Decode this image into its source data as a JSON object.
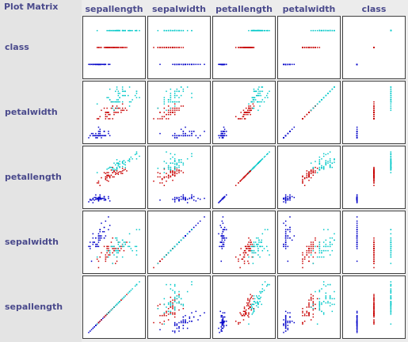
{
  "title": "Plot Matrix",
  "attributes": [
    "sepallength",
    "sepalwidth",
    "petallength",
    "petalwidth",
    "class"
  ],
  "lims": [
    [
      4.3,
      7.9
    ],
    [
      2.0,
      4.4
    ],
    [
      1.0,
      6.9
    ],
    [
      0.1,
      2.5
    ],
    [
      -0.5,
      2.5
    ]
  ],
  "colors": [
    "#0000c8",
    "#c80000",
    "#00c8c8"
  ],
  "instances": [
    [
      5.1,
      3.5,
      1.4,
      0.2,
      0
    ],
    [
      4.9,
      3.0,
      1.4,
      0.2,
      0
    ],
    [
      4.7,
      3.2,
      1.3,
      0.2,
      0
    ],
    [
      4.6,
      3.1,
      1.5,
      0.2,
      0
    ],
    [
      5.0,
      3.6,
      1.4,
      0.2,
      0
    ],
    [
      5.4,
      3.9,
      1.7,
      0.4,
      0
    ],
    [
      4.6,
      3.4,
      1.4,
      0.3,
      0
    ],
    [
      5.0,
      3.4,
      1.5,
      0.2,
      0
    ],
    [
      4.4,
      2.9,
      1.4,
      0.2,
      0
    ],
    [
      4.9,
      3.1,
      1.5,
      0.1,
      0
    ],
    [
      5.4,
      3.7,
      1.5,
      0.2,
      0
    ],
    [
      4.8,
      3.4,
      1.6,
      0.2,
      0
    ],
    [
      4.8,
      3.0,
      1.4,
      0.1,
      0
    ],
    [
      4.3,
      3.0,
      1.1,
      0.1,
      0
    ],
    [
      5.8,
      4.0,
      1.2,
      0.2,
      0
    ],
    [
      5.7,
      4.4,
      1.5,
      0.4,
      0
    ],
    [
      5.4,
      3.9,
      1.3,
      0.4,
      0
    ],
    [
      5.1,
      3.5,
      1.4,
      0.3,
      0
    ],
    [
      5.7,
      3.8,
      1.7,
      0.3,
      0
    ],
    [
      5.1,
      3.8,
      1.5,
      0.3,
      0
    ],
    [
      5.4,
      3.4,
      1.7,
      0.2,
      0
    ],
    [
      5.1,
      3.7,
      1.5,
      0.4,
      0
    ],
    [
      4.6,
      3.6,
      1.0,
      0.2,
      0
    ],
    [
      5.1,
      3.3,
      1.7,
      0.5,
      0
    ],
    [
      4.8,
      3.4,
      1.9,
      0.2,
      0
    ],
    [
      5.0,
      3.0,
      1.6,
      0.2,
      0
    ],
    [
      5.0,
      3.4,
      1.6,
      0.4,
      0
    ],
    [
      5.2,
      3.5,
      1.5,
      0.2,
      0
    ],
    [
      5.2,
      3.4,
      1.4,
      0.2,
      0
    ],
    [
      4.7,
      3.2,
      1.6,
      0.2,
      0
    ],
    [
      4.8,
      3.1,
      1.6,
      0.2,
      0
    ],
    [
      5.4,
      3.4,
      1.5,
      0.4,
      0
    ],
    [
      5.2,
      4.1,
      1.5,
      0.1,
      0
    ],
    [
      5.5,
      4.2,
      1.4,
      0.2,
      0
    ],
    [
      4.9,
      3.1,
      1.5,
      0.1,
      0
    ],
    [
      5.0,
      3.2,
      1.2,
      0.2,
      0
    ],
    [
      5.5,
      3.5,
      1.3,
      0.2,
      0
    ],
    [
      4.9,
      3.1,
      1.5,
      0.1,
      0
    ],
    [
      4.4,
      3.0,
      1.3,
      0.2,
      0
    ],
    [
      5.1,
      3.4,
      1.5,
      0.2,
      0
    ],
    [
      5.0,
      3.5,
      1.3,
      0.3,
      0
    ],
    [
      4.5,
      2.3,
      1.3,
      0.3,
      0
    ],
    [
      4.4,
      3.2,
      1.3,
      0.2,
      0
    ],
    [
      5.0,
      3.5,
      1.6,
      0.6,
      0
    ],
    [
      5.1,
      3.8,
      1.9,
      0.4,
      0
    ],
    [
      4.8,
      3.0,
      1.4,
      0.3,
      0
    ],
    [
      5.1,
      3.8,
      1.6,
      0.2,
      0
    ],
    [
      4.6,
      3.2,
      1.4,
      0.2,
      0
    ],
    [
      5.3,
      3.7,
      1.5,
      0.2,
      0
    ],
    [
      5.0,
      3.3,
      1.4,
      0.2,
      0
    ],
    [
      7.0,
      3.2,
      4.7,
      1.4,
      1
    ],
    [
      6.4,
      3.2,
      4.5,
      1.5,
      1
    ],
    [
      6.9,
      3.1,
      4.9,
      1.5,
      1
    ],
    [
      5.5,
      2.3,
      4.0,
      1.3,
      1
    ],
    [
      6.5,
      2.8,
      4.6,
      1.5,
      1
    ],
    [
      5.7,
      2.8,
      4.5,
      1.3,
      1
    ],
    [
      6.3,
      3.3,
      4.7,
      1.6,
      1
    ],
    [
      4.9,
      2.4,
      3.3,
      1.0,
      1
    ],
    [
      6.6,
      2.9,
      4.6,
      1.3,
      1
    ],
    [
      5.2,
      2.7,
      3.9,
      1.4,
      1
    ],
    [
      5.0,
      2.0,
      3.5,
      1.0,
      1
    ],
    [
      5.9,
      3.0,
      4.2,
      1.5,
      1
    ],
    [
      6.0,
      2.2,
      4.0,
      1.0,
      1
    ],
    [
      6.1,
      2.9,
      4.7,
      1.4,
      1
    ],
    [
      5.6,
      2.9,
      3.6,
      1.3,
      1
    ],
    [
      6.7,
      3.1,
      4.4,
      1.4,
      1
    ],
    [
      5.6,
      3.0,
      4.5,
      1.5,
      1
    ],
    [
      5.8,
      2.7,
      4.1,
      1.0,
      1
    ],
    [
      6.2,
      2.2,
      4.5,
      1.5,
      1
    ],
    [
      5.6,
      2.5,
      3.9,
      1.1,
      1
    ],
    [
      5.9,
      3.2,
      4.8,
      1.8,
      1
    ],
    [
      6.1,
      2.8,
      4.0,
      1.3,
      1
    ],
    [
      6.3,
      2.5,
      4.9,
      1.5,
      1
    ],
    [
      6.1,
      2.8,
      4.7,
      1.2,
      1
    ],
    [
      6.4,
      2.9,
      4.3,
      1.3,
      1
    ],
    [
      6.6,
      3.0,
      4.4,
      1.4,
      1
    ],
    [
      6.8,
      2.8,
      4.8,
      1.4,
      1
    ],
    [
      6.7,
      3.0,
      5.0,
      1.7,
      1
    ],
    [
      6.0,
      2.9,
      4.5,
      1.5,
      1
    ],
    [
      5.7,
      2.6,
      3.5,
      1.0,
      1
    ],
    [
      5.5,
      2.4,
      3.8,
      1.1,
      1
    ],
    [
      5.5,
      2.4,
      3.7,
      1.0,
      1
    ],
    [
      5.8,
      2.7,
      3.9,
      1.2,
      1
    ],
    [
      6.0,
      2.7,
      5.1,
      1.6,
      1
    ],
    [
      5.4,
      3.0,
      4.5,
      1.5,
      1
    ],
    [
      6.0,
      3.4,
      4.5,
      1.6,
      1
    ],
    [
      6.7,
      3.1,
      4.7,
      1.5,
      1
    ],
    [
      6.3,
      2.3,
      4.4,
      1.3,
      1
    ],
    [
      5.6,
      3.0,
      4.1,
      1.3,
      1
    ],
    [
      5.5,
      2.5,
      4.0,
      1.3,
      1
    ],
    [
      5.5,
      2.6,
      4.4,
      1.2,
      1
    ],
    [
      6.1,
      3.0,
      4.6,
      1.4,
      1
    ],
    [
      5.8,
      2.6,
      4.0,
      1.2,
      1
    ],
    [
      5.0,
      2.3,
      3.3,
      1.0,
      1
    ],
    [
      5.6,
      2.7,
      4.2,
      1.3,
      1
    ],
    [
      5.7,
      3.0,
      4.2,
      1.2,
      1
    ],
    [
      5.7,
      2.9,
      4.2,
      1.3,
      1
    ],
    [
      6.2,
      2.9,
      4.3,
      1.3,
      1
    ],
    [
      5.1,
      2.5,
      3.0,
      1.1,
      1
    ],
    [
      5.7,
      2.8,
      4.1,
      1.3,
      1
    ],
    [
      6.3,
      3.3,
      6.0,
      2.5,
      2
    ],
    [
      5.8,
      2.7,
      5.1,
      1.9,
      2
    ],
    [
      7.1,
      3.0,
      5.9,
      2.1,
      2
    ],
    [
      6.3,
      2.9,
      5.6,
      1.8,
      2
    ],
    [
      6.5,
      3.0,
      5.8,
      2.2,
      2
    ],
    [
      7.6,
      3.0,
      6.6,
      2.1,
      2
    ],
    [
      4.9,
      2.5,
      4.5,
      1.7,
      2
    ],
    [
      7.3,
      2.9,
      6.3,
      1.8,
      2
    ],
    [
      6.7,
      2.5,
      5.8,
      1.8,
      2
    ],
    [
      7.2,
      3.6,
      6.1,
      2.5,
      2
    ],
    [
      6.5,
      3.2,
      5.1,
      2.0,
      2
    ],
    [
      6.4,
      2.7,
      5.3,
      1.9,
      2
    ],
    [
      6.8,
      3.0,
      5.5,
      2.1,
      2
    ],
    [
      5.7,
      2.5,
      5.0,
      2.0,
      2
    ],
    [
      5.8,
      2.8,
      5.1,
      2.4,
      2
    ],
    [
      6.4,
      3.2,
      5.3,
      2.3,
      2
    ],
    [
      6.5,
      3.0,
      5.5,
      1.8,
      2
    ],
    [
      7.7,
      3.8,
      6.7,
      2.2,
      2
    ],
    [
      7.7,
      2.6,
      6.9,
      2.3,
      2
    ],
    [
      6.0,
      2.2,
      5.0,
      1.5,
      2
    ],
    [
      6.9,
      3.2,
      5.7,
      2.3,
      2
    ],
    [
      5.6,
      2.8,
      4.9,
      2.0,
      2
    ],
    [
      7.7,
      2.8,
      6.7,
      2.0,
      2
    ],
    [
      6.3,
      2.7,
      4.9,
      1.8,
      2
    ],
    [
      6.7,
      3.3,
      5.7,
      2.1,
      2
    ],
    [
      7.2,
      3.2,
      6.0,
      1.8,
      2
    ],
    [
      6.2,
      2.8,
      4.8,
      1.8,
      2
    ],
    [
      6.1,
      3.0,
      4.9,
      1.8,
      2
    ],
    [
      6.4,
      2.8,
      5.6,
      2.1,
      2
    ],
    [
      7.2,
      3.0,
      5.8,
      1.6,
      2
    ],
    [
      7.4,
      2.8,
      6.1,
      1.9,
      2
    ],
    [
      7.9,
      3.8,
      6.4,
      2.0,
      2
    ],
    [
      6.4,
      2.8,
      5.6,
      2.2,
      2
    ],
    [
      6.3,
      2.8,
      5.1,
      1.5,
      2
    ],
    [
      6.1,
      2.6,
      5.6,
      1.4,
      2
    ],
    [
      7.7,
      3.0,
      6.1,
      2.3,
      2
    ],
    [
      6.3,
      3.4,
      5.6,
      2.4,
      2
    ],
    [
      6.4,
      3.1,
      5.5,
      1.8,
      2
    ],
    [
      6.0,
      3.0,
      4.8,
      1.8,
      2
    ],
    [
      6.9,
      3.1,
      5.4,
      2.1,
      2
    ],
    [
      6.7,
      3.1,
      5.6,
      2.4,
      2
    ],
    [
      6.9,
      3.1,
      5.1,
      2.3,
      2
    ],
    [
      5.8,
      2.7,
      5.1,
      1.9,
      2
    ],
    [
      6.8,
      3.2,
      5.9,
      2.3,
      2
    ],
    [
      6.7,
      3.3,
      5.7,
      2.5,
      2
    ],
    [
      6.7,
      3.0,
      5.2,
      2.3,
      2
    ],
    [
      6.3,
      2.5,
      5.0,
      1.9,
      2
    ],
    [
      6.5,
      3.0,
      5.2,
      2.0,
      2
    ],
    [
      6.2,
      3.4,
      5.4,
      2.3,
      2
    ],
    [
      5.9,
      3.0,
      5.1,
      1.8,
      2
    ]
  ]
}
